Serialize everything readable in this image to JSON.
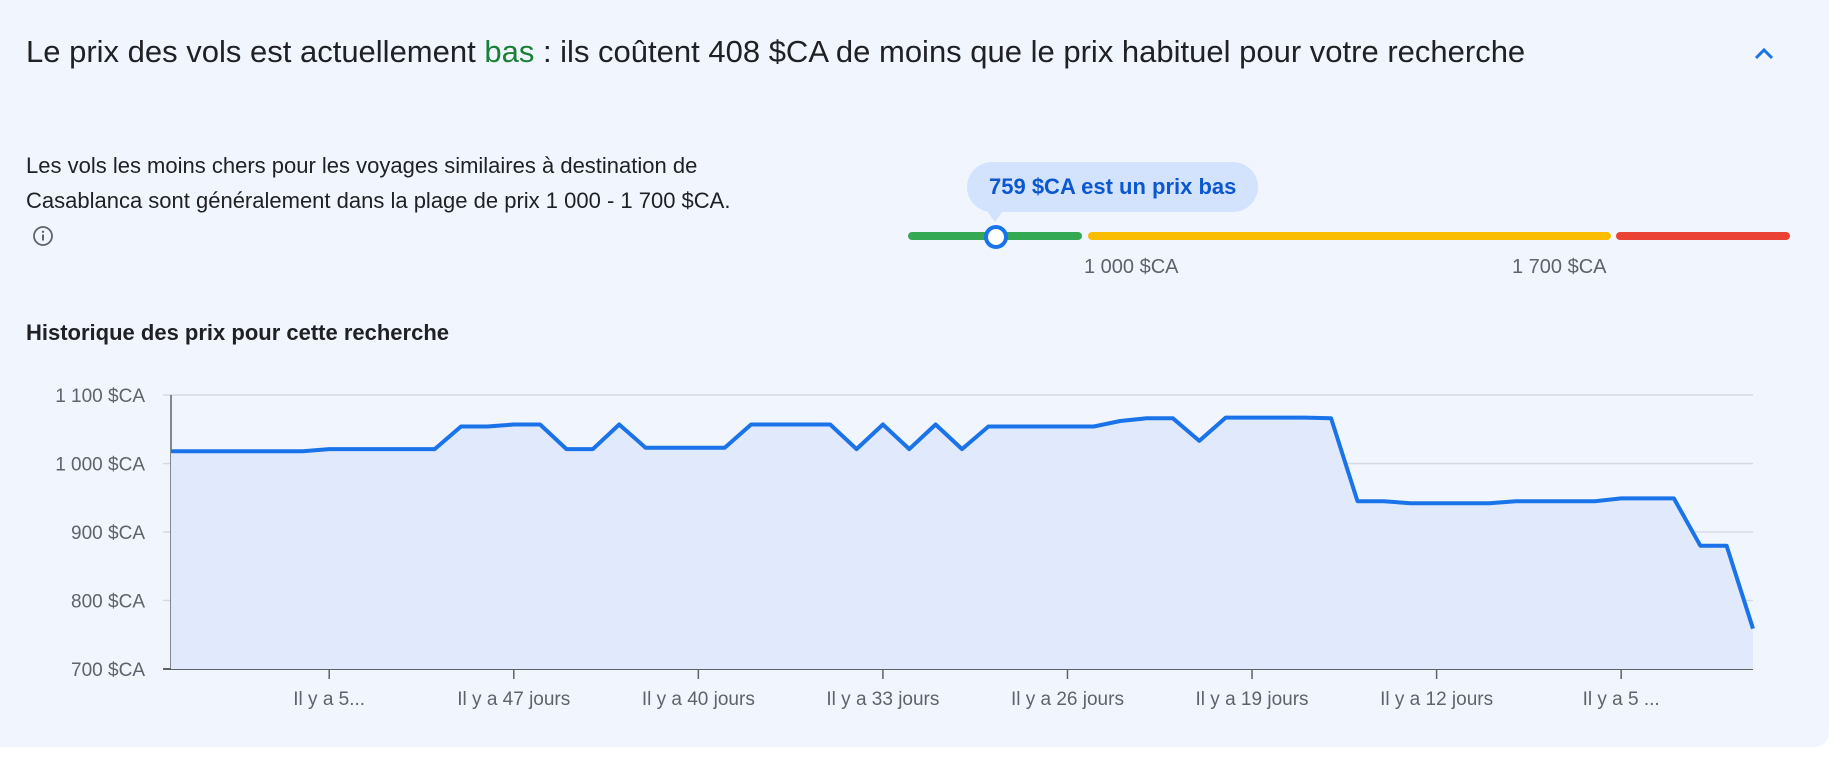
{
  "header": {
    "title_prefix": "Le prix des vols est actuellement ",
    "title_status": "bas",
    "title_suffix": " : ils coûtent 408 $CA de moins que le prix habituel pour votre recherche",
    "collapse_icon": "chevron-up-icon"
  },
  "summary": {
    "description": "Les vols les moins chers pour les voyages similaires à destination de Casablanca sont généralement dans la plage de prix 1 000 - 1 700 $CA.",
    "info_icon": "info-icon"
  },
  "price_range": {
    "tooltip": "759 $CA est un prix bas",
    "current_price": 759,
    "low_label": "1 000 $CA",
    "high_label": "1 700 $CA",
    "low_threshold": 1000,
    "high_threshold": 1700,
    "colors": {
      "low": "#34a853",
      "typical": "#fbbc04",
      "high": "#ea4335",
      "marker": "#1a73e8"
    }
  },
  "history_title": "Historique des prix pour cette recherche",
  "chart_data": {
    "type": "area",
    "title": "Historique des prix pour cette recherche",
    "xlabel": "",
    "ylabel": "",
    "x_days_ago": [
      60,
      59,
      58,
      57,
      56,
      55,
      54,
      53,
      52,
      51,
      50,
      49,
      48,
      47,
      46,
      45,
      44,
      43,
      42,
      41,
      40,
      39,
      38,
      37,
      36,
      35,
      34,
      33,
      32,
      31,
      30,
      29,
      28,
      27,
      26,
      25,
      24,
      23,
      22,
      21,
      20,
      19,
      18,
      17,
      16,
      15,
      14,
      13,
      12,
      11,
      10,
      9,
      8,
      7,
      6,
      5,
      4,
      3,
      2,
      1,
      0
    ],
    "values": [
      1018,
      1018,
      1018,
      1018,
      1018,
      1018,
      1021,
      1021,
      1021,
      1021,
      1021,
      1054,
      1054,
      1057,
      1057,
      1021,
      1021,
      1057,
      1023,
      1023,
      1023,
      1023,
      1057,
      1057,
      1057,
      1057,
      1021,
      1057,
      1021,
      1057,
      1021,
      1054,
      1054,
      1054,
      1054,
      1054,
      1062,
      1066,
      1066,
      1033,
      1067,
      1067,
      1067,
      1067,
      1066,
      945,
      945,
      942,
      942,
      942,
      942,
      945,
      945,
      945,
      945,
      949,
      949,
      949,
      880,
      880,
      759
    ],
    "ylim": [
      700,
      1100
    ],
    "y_ticks": [
      {
        "v": 1100,
        "label": "1 100 $CA"
      },
      {
        "v": 1000,
        "label": "1 000 $CA"
      },
      {
        "v": 900,
        "label": "900 $CA"
      },
      {
        "v": 800,
        "label": "800 $CA"
      },
      {
        "v": 700,
        "label": "700 $CA"
      }
    ],
    "x_ticks": [
      {
        "d": 54,
        "label": "Il y a 5..."
      },
      {
        "d": 47,
        "label": "Il y a 47 jours"
      },
      {
        "d": 40,
        "label": "Il y a 40 jours"
      },
      {
        "d": 33,
        "label": "Il y a 33 jours"
      },
      {
        "d": 26,
        "label": "Il y a 26 jours"
      },
      {
        "d": 19,
        "label": "Il y a 19 jours"
      },
      {
        "d": 12,
        "label": "Il y a 12 jours"
      },
      {
        "d": 5,
        "label": "Il y a 5 ..."
      }
    ],
    "grid": true,
    "line_color": "#1a73e8",
    "fill_color": "#e1e9fc"
  }
}
